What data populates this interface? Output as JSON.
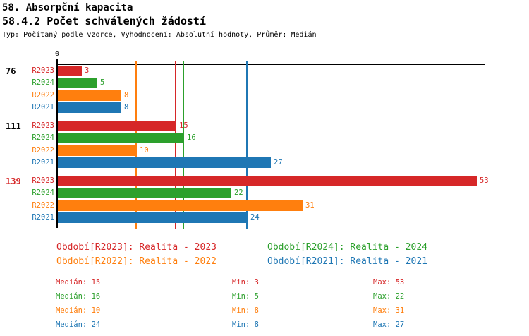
{
  "header": {
    "title": "58. Absorpční kapacita",
    "subtitle": "58.4.2 Počet schválených žádostí",
    "meta": "Typ: Počítaný podle vzorce, Vyhodnocení: Absolutní hodnoty, Průměr: Medián"
  },
  "chart_data": {
    "type": "bar",
    "orientation": "horizontal",
    "origin_label": "0",
    "x_axis": {
      "min": 0,
      "shown_tick": 0,
      "gridlines": "median markers per series"
    },
    "series": [
      {
        "name": "R2023",
        "color": "#d62728",
        "median": 15,
        "min": 3,
        "max": 53
      },
      {
        "name": "R2024",
        "color": "#2ca02c",
        "median": 16,
        "min": 5,
        "max": 22
      },
      {
        "name": "R2022",
        "color": "#ff7f0e",
        "median": 10,
        "min": 8,
        "max": 31
      },
      {
        "name": "R2021",
        "color": "#1f77b4",
        "median": 24,
        "min": 8,
        "max": 27
      }
    ],
    "groups": [
      {
        "label": "76",
        "label_color": "#000000",
        "values": [
          3,
          5,
          8,
          8
        ]
      },
      {
        "label": "111",
        "label_color": "#000000",
        "values": [
          15,
          16,
          10,
          27
        ]
      },
      {
        "label": "139",
        "label_color": "#d62728",
        "values": [
          53,
          22,
          31,
          24
        ]
      }
    ]
  },
  "legend": {
    "items": [
      {
        "label": "Období[R2023]: Realita - 2023",
        "color": "#d62728",
        "col": 0,
        "row": 0
      },
      {
        "label": "Období[R2024]: Realita - 2024",
        "color": "#2ca02c",
        "col": 1,
        "row": 0
      },
      {
        "label": "Období[R2022]: Realita - 2022",
        "color": "#ff7f0e",
        "col": 0,
        "row": 1
      },
      {
        "label": "Období[R2021]: Realita - 2021",
        "color": "#1f77b4",
        "col": 1,
        "row": 1
      }
    ]
  },
  "stats_labels": {
    "median": "Medián",
    "min": "Min",
    "max": "Max"
  }
}
